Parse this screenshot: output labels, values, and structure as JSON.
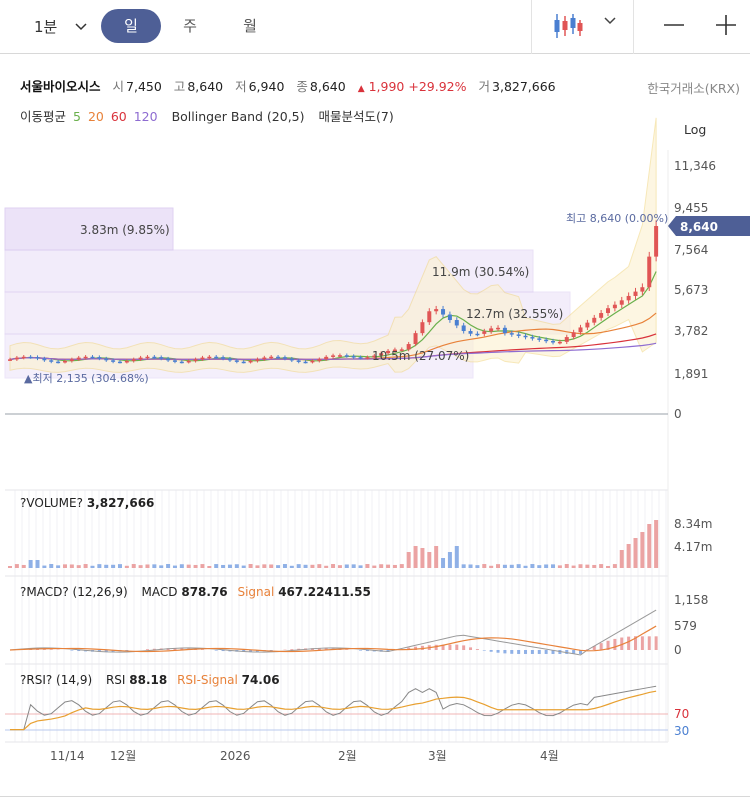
{
  "toolbar": {
    "period": "1분",
    "tabs": [
      "일",
      "주",
      "월"
    ],
    "active_tab": "일"
  },
  "stock": {
    "name": "서울바이오시스",
    "open_label": "시",
    "open": "7,450",
    "high_label": "고",
    "high": "8,640",
    "low_label": "저",
    "low": "6,940",
    "close_label": "종",
    "close": "8,640",
    "change_arrow": "▲",
    "change": "1,990",
    "change_pct": "+29.92%",
    "volume_label": "거",
    "volume": "3,827,666",
    "exchange": "한국거래소(KRX)"
  },
  "indicators": {
    "ma_label": "이동평균",
    "ma_periods": [
      "5",
      "20",
      "60",
      "120"
    ],
    "ma_colors": [
      "#6ab04c",
      "#e8823a",
      "#d9323b",
      "#8e6cd1"
    ],
    "bollinger": "Bollinger Band (20,5)",
    "volume_profile": "매물분석도(7)"
  },
  "scale_mode": "Log",
  "price_axis": {
    "ticks": [
      "11,346",
      "9,455",
      "7,564",
      "5,673",
      "3,782",
      "1,891",
      "0"
    ],
    "current_price": "8,640"
  },
  "annotations": {
    "high": "최고 8,640 (0.00%)",
    "low": "▲최저 2,135 (304.68%)",
    "vp_boxes": [
      "3.83m (9.85%)",
      "11.9m (30.54%)",
      "12.7m (32.55%)",
      "10.5m (27.07%)"
    ]
  },
  "volume_pane": {
    "label": "?VOLUME?",
    "value": "3,827,666",
    "ticks": [
      "8.34m",
      "4.17m"
    ]
  },
  "macd_pane": {
    "label": "?MACD? (12,26,9)",
    "macd_label": "MACD",
    "macd_value": "878.76",
    "signal_label": "Signal",
    "signal_value": "467.22411.55",
    "ticks": [
      "1,158",
      "579",
      "0"
    ]
  },
  "rsi_pane": {
    "label": "?RSI? (14,9)",
    "rsi_label": "RSI",
    "rsi_value": "88.18",
    "signal_label": "RSI-Signal",
    "signal_value": "74.06",
    "ticks": [
      "70",
      "30"
    ]
  },
  "x_axis": [
    "11/14",
    "12월",
    "2026",
    "2월",
    "3월",
    "4월"
  ],
  "colors": {
    "up": "#e05555",
    "down": "#4a7fd1",
    "accent": "#4e5f96",
    "bollinger": "#f2d98a",
    "vp_box": "#e8ddf7"
  },
  "chart_data": {
    "type": "candlestick",
    "price_range": [
      0,
      11346
    ],
    "close_last": 8640,
    "high": 8640,
    "low": 2135,
    "volume_last": 3827666,
    "macd": 878.76,
    "rsi": 88.18,
    "rsi_signal": 74.06
  }
}
